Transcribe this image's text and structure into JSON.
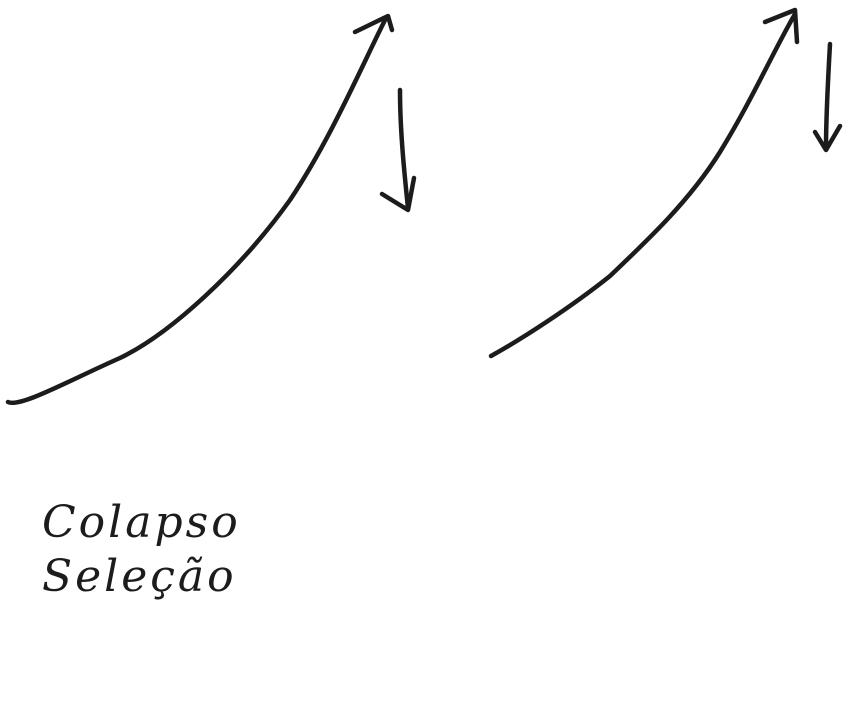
{
  "labels": {
    "line1": "Colapso",
    "line2": "Seleção"
  },
  "icons": {
    "curve_left": "rising-curve-arrow-icon",
    "drop_left": "down-arrow-icon",
    "curve_right": "rising-curve-arrow-icon",
    "drop_right": "down-arrow-icon"
  },
  "colors": {
    "ink": "#1c1c1c",
    "background": "#ffffff"
  }
}
